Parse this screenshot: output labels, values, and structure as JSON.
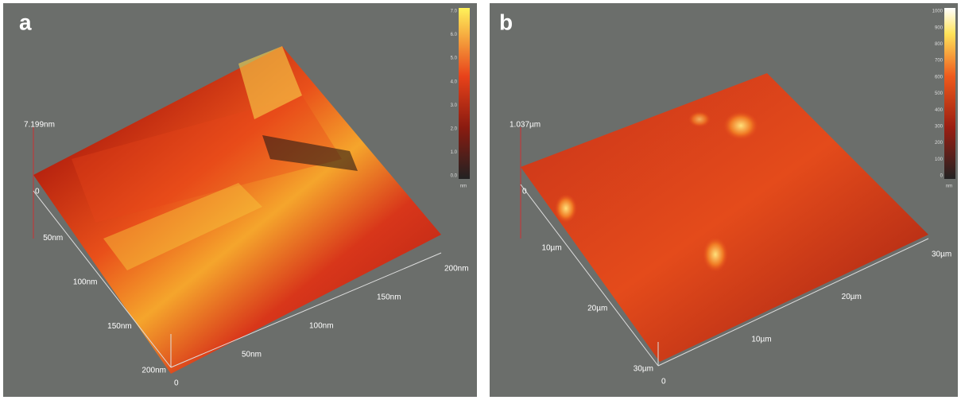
{
  "panels": [
    {
      "label": "a",
      "z_max": "7.199nm",
      "z_origin": "0",
      "y_axis": [
        "50nm",
        "100nm",
        "150nm",
        "200nm"
      ],
      "x_axis": [
        "0",
        "50nm",
        "100nm",
        "150nm",
        "200nm"
      ],
      "colorbar": {
        "ticks": [
          "7.0",
          "6.0",
          "5.0",
          "4.0",
          "3.0",
          "2.0",
          "1.0",
          "0.0"
        ],
        "unit": "nm"
      }
    },
    {
      "label": "b",
      "z_max": "1.037µm",
      "z_origin": "0",
      "y_axis": [
        "10µm",
        "20µm",
        "30µm"
      ],
      "x_axis": [
        "0",
        "10µm",
        "20µm",
        "30µm"
      ],
      "colorbar": {
        "ticks": [
          "1000",
          "900",
          "800",
          "700",
          "600",
          "500",
          "400",
          "300",
          "200",
          "100",
          "0"
        ],
        "unit": "nm"
      }
    }
  ]
}
